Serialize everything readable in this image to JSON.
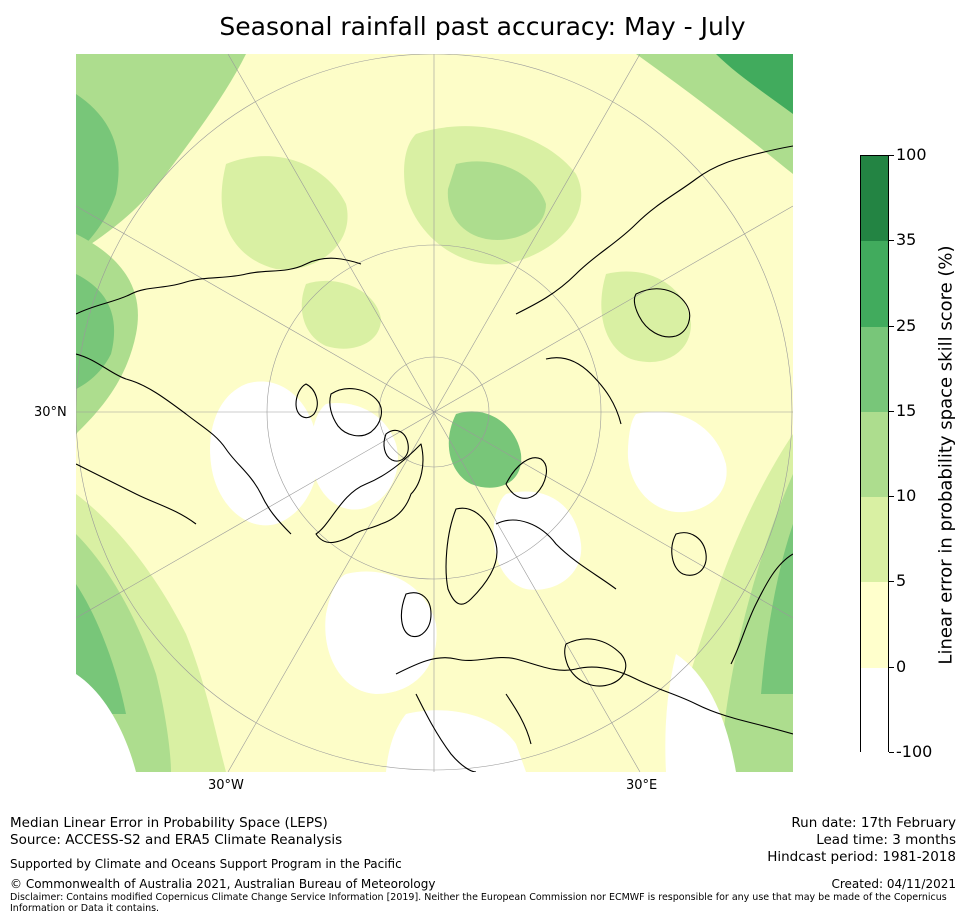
{
  "title": "Seasonal rainfall past accuracy: May - July",
  "map": {
    "projection": "North Polar Stereographic",
    "colors": {
      "ocean_bg": "#fdfdc8",
      "land_line": "#000000",
      "grid_line": "#9a9a9a"
    },
    "labels": {
      "lat_left": "30°N",
      "lon_bottom_left": "30°W",
      "lon_bottom_right": "30°E"
    }
  },
  "colorbar": {
    "title": "Linear error in probability space skill score (%)",
    "bins": [
      {
        "from": "-100",
        "to": "0",
        "color": "#ffffff"
      },
      {
        "from": "0",
        "to": "5",
        "color": "#ffffcc"
      },
      {
        "from": "5",
        "to": "10",
        "color": "#d9f0a3"
      },
      {
        "from": "10",
        "to": "15",
        "color": "#addd8e"
      },
      {
        "from": "15",
        "to": "25",
        "color": "#78c679"
      },
      {
        "from": "25",
        "to": "35",
        "color": "#41ab5d"
      },
      {
        "from": "35",
        "to": "100",
        "color": "#238443"
      }
    ],
    "tick_labels": [
      "100",
      "35",
      "25",
      "15",
      "10",
      "5",
      "0",
      "-100"
    ]
  },
  "footer": {
    "method": "Median Linear Error in Probability Space (LEPS)",
    "source": "Source: ACCESS-S2 and ERA5 Climate Reanalysis",
    "support": "Supported by Climate and Oceans Support Program in the Pacific",
    "copyright": "© Commonwealth of Australia 2021, Australian Bureau of Meteorology",
    "disclaimer_line1": "Disclaimer: Contains modified Copernicus Climate Change Service Information [2019]. Neither the European Commission nor ECMWF is responsible for any use that may be made of the Copernicus",
    "disclaimer_line2": "Information or Data it contains.",
    "run_date": "Run date: 17th February",
    "lead_time": "Lead time: 3 months",
    "hindcast": "Hindcast period: 1981-2018",
    "created": "Created: 04/11/2021"
  }
}
